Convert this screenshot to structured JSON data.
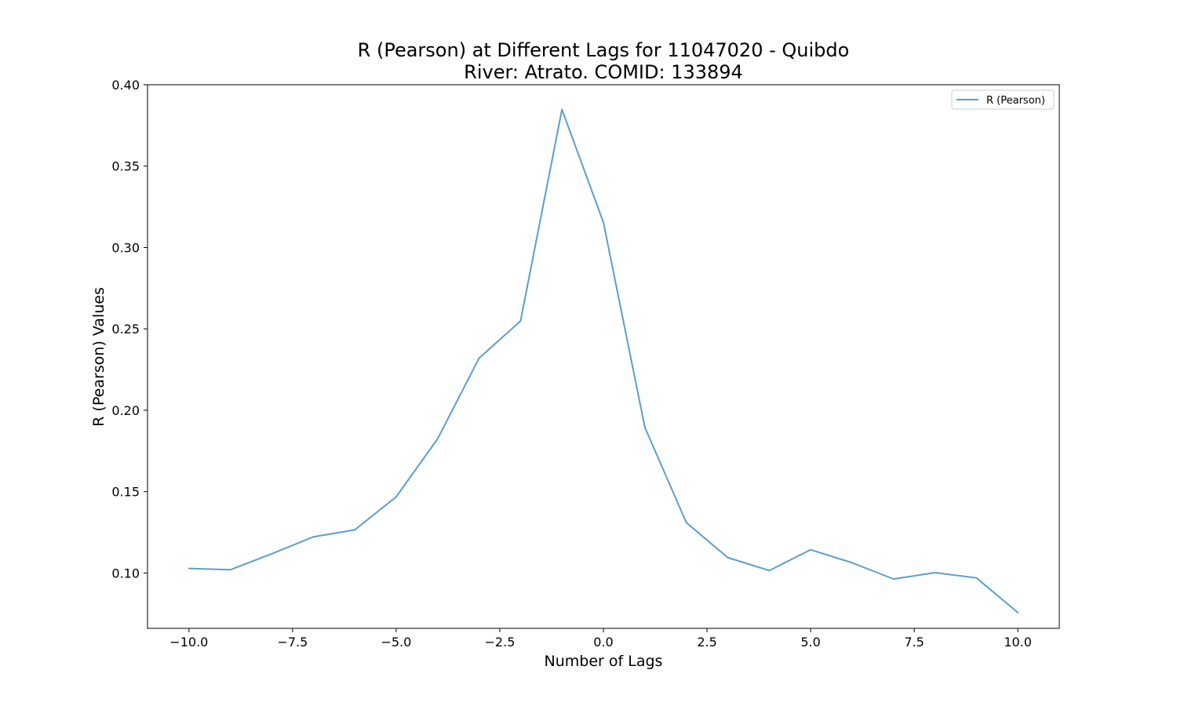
{
  "chart_data": {
    "type": "line",
    "title": "R (Pearson) at Different Lags for 11047020 - Quibdo",
    "subtitle": "River: Atrato. COMID: 133894",
    "xlabel": "Number of Lags",
    "ylabel": "R (Pearson) Values",
    "xlim": [
      -11,
      11
    ],
    "ylim": [
      0.066,
      0.4
    ],
    "xticks": [
      -10.0,
      -7.5,
      -5.0,
      -2.5,
      0.0,
      2.5,
      5.0,
      7.5,
      10.0
    ],
    "xtick_labels": [
      "−10.0",
      "−7.5",
      "−5.0",
      "−2.5",
      "0.0",
      "2.5",
      "5.0",
      "7.5",
      "10.0"
    ],
    "yticks": [
      0.1,
      0.15,
      0.2,
      0.25,
      0.3,
      0.35,
      0.4
    ],
    "ytick_labels": [
      "0.10",
      "0.15",
      "0.20",
      "0.25",
      "0.30",
      "0.35",
      "0.40"
    ],
    "grid": false,
    "legend_position": "top-right",
    "series": [
      {
        "name": "R (Pearson)",
        "color": "#5b9ecc",
        "x": [
          -10,
          -9,
          -8,
          -7,
          -6,
          -5,
          -4,
          -3,
          -2,
          -1,
          0,
          1,
          2,
          3,
          4,
          5,
          6,
          7,
          8,
          9,
          10
        ],
        "values": [
          0.1028,
          0.102,
          0.1118,
          0.1222,
          0.1265,
          0.1468,
          0.1825,
          0.232,
          0.2548,
          0.3848,
          0.3154,
          0.1895,
          0.131,
          0.1095,
          0.1015,
          0.1143,
          0.1063,
          0.0963,
          0.1002,
          0.097,
          0.0757
        ]
      }
    ]
  }
}
